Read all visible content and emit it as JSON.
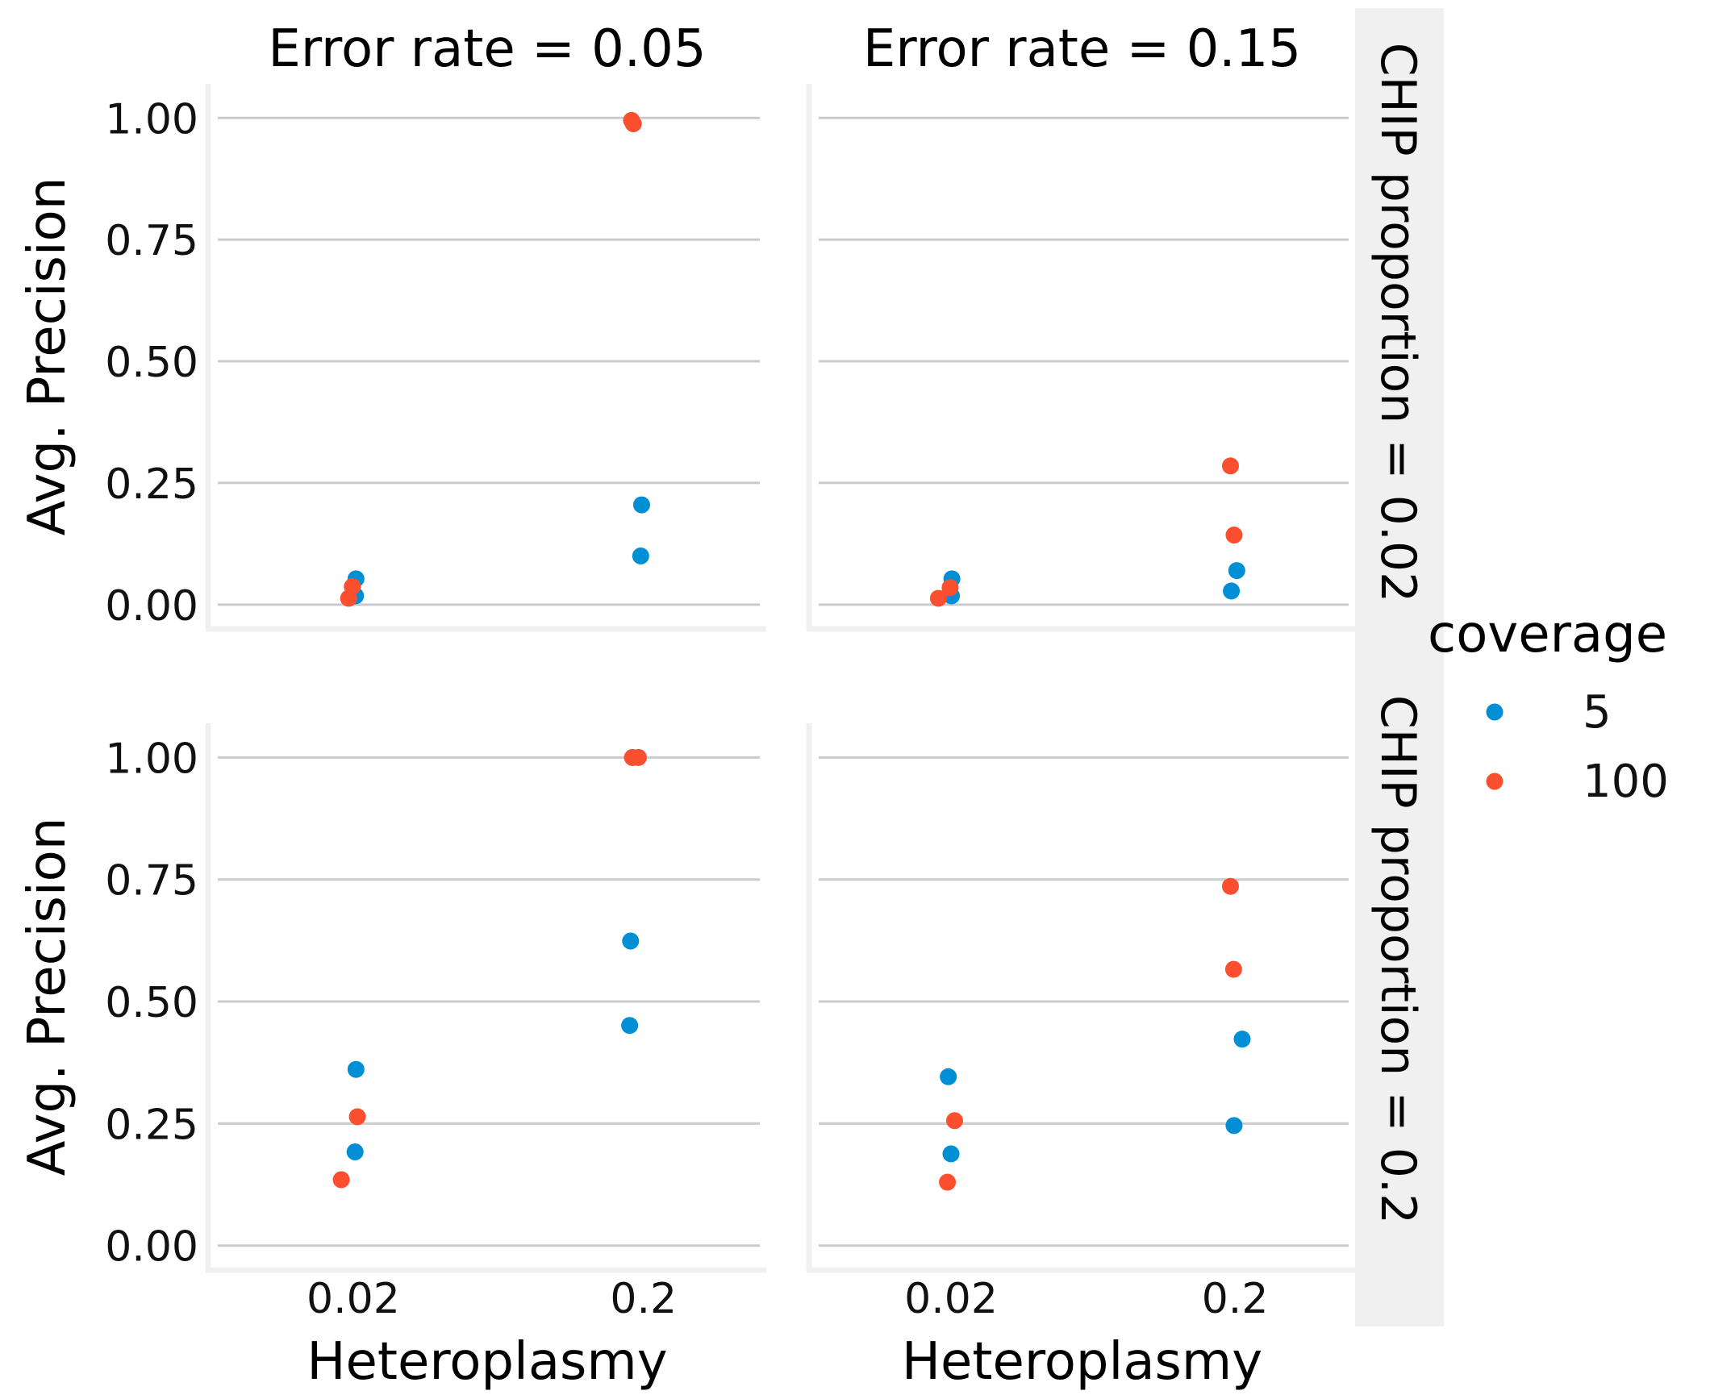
{
  "chart_data": {
    "type": "scatter",
    "facet_cols": [
      "Error rate = 0.05",
      "Error rate = 0.15"
    ],
    "facet_rows": [
      "CHIP proportion = 0.02",
      "CHIP proportion = 0.2"
    ],
    "xlabel": "Heteroplasmy",
    "ylabel": "Avg. Precision",
    "x_categories": [
      "0.02",
      "0.2"
    ],
    "y_ticks": [
      "0.00",
      "0.25",
      "0.50",
      "0.75",
      "1.00"
    ],
    "ylim": [
      -0.05,
      1.07
    ],
    "grid": "horizontal",
    "legend": {
      "title": "coverage",
      "placement": "right",
      "entries": [
        {
          "label": "5",
          "color": "#008fd5"
        },
        {
          "label": "100",
          "color": "#fc4f30"
        }
      ]
    },
    "panels": [
      {
        "row": 0,
        "col": 0,
        "points": [
          {
            "x": 0.03,
            "y": 0.053,
            "coverage": "5"
          },
          {
            "x": 0.025,
            "y": 0.018,
            "coverage": "5"
          },
          {
            "x": 0.98,
            "y": 0.205,
            "coverage": "5"
          },
          {
            "x": 0.97,
            "y": 0.1,
            "coverage": "5"
          },
          {
            "x": -0.05,
            "y": 0.013,
            "coverage": "100"
          },
          {
            "x": -0.01,
            "y": 0.037,
            "coverage": "100"
          },
          {
            "x": 0.87,
            "y": 0.995,
            "coverage": "100"
          },
          {
            "x": 0.89,
            "y": 0.988,
            "coverage": "100"
          }
        ]
      },
      {
        "row": 0,
        "col": 1,
        "points": [
          {
            "x": 0.01,
            "y": 0.053,
            "coverage": "5"
          },
          {
            "x": 0.005,
            "y": 0.018,
            "coverage": "5"
          },
          {
            "x": 0.96,
            "y": 0.028,
            "coverage": "5"
          },
          {
            "x": 1.02,
            "y": 0.07,
            "coverage": "5"
          },
          {
            "x": -0.14,
            "y": 0.013,
            "coverage": "100"
          },
          {
            "x": -0.01,
            "y": 0.035,
            "coverage": "100"
          },
          {
            "x": 0.95,
            "y": 0.285,
            "coverage": "100"
          },
          {
            "x": 0.99,
            "y": 0.143,
            "coverage": "100"
          }
        ]
      },
      {
        "row": 1,
        "col": 0,
        "points": [
          {
            "x": 0.03,
            "y": 0.361,
            "coverage": "5"
          },
          {
            "x": 0.02,
            "y": 0.192,
            "coverage": "5"
          },
          {
            "x": 0.86,
            "y": 0.624,
            "coverage": "5"
          },
          {
            "x": 0.85,
            "y": 0.451,
            "coverage": "5"
          },
          {
            "x": -0.13,
            "y": 0.135,
            "coverage": "100"
          },
          {
            "x": 0.045,
            "y": 0.264,
            "coverage": "100"
          },
          {
            "x": 0.88,
            "y": 1.0,
            "coverage": "100"
          },
          {
            "x": 0.945,
            "y": 1.0,
            "coverage": "100"
          }
        ]
      },
      {
        "row": 1,
        "col": 1,
        "points": [
          {
            "x": -0.03,
            "y": 0.346,
            "coverage": "5"
          },
          {
            "x": 0.0,
            "y": 0.188,
            "coverage": "5"
          },
          {
            "x": 1.08,
            "y": 0.423,
            "coverage": "5"
          },
          {
            "x": 0.99,
            "y": 0.246,
            "coverage": "5"
          },
          {
            "x": -0.04,
            "y": 0.13,
            "coverage": "100"
          },
          {
            "x": 0.04,
            "y": 0.256,
            "coverage": "100"
          },
          {
            "x": 0.95,
            "y": 0.736,
            "coverage": "100"
          },
          {
            "x": 0.985,
            "y": 0.566,
            "coverage": "100"
          }
        ]
      }
    ]
  }
}
